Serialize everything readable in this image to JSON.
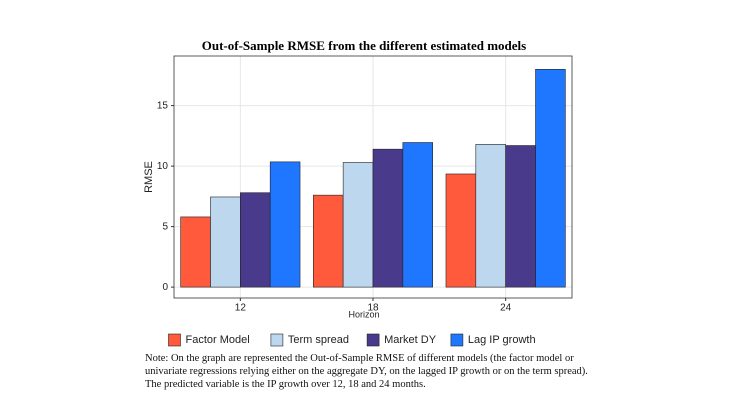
{
  "chart_data": {
    "type": "bar",
    "title": "Out-of-Sample RMSE from the different estimated models",
    "x_label": "Horizon",
    "y_label": "RMSE",
    "categories": [
      "12",
      "18",
      "24"
    ],
    "series": [
      {
        "name": "Factor Model",
        "color": "#ff5a3c",
        "values": [
          5.8,
          7.6,
          9.35
        ]
      },
      {
        "name": "Term spread",
        "color": "#bdd7ee",
        "values": [
          7.45,
          10.3,
          11.8
        ]
      },
      {
        "name": "Market DY",
        "color": "#4a3a8c",
        "values": [
          7.8,
          11.4,
          11.7
        ]
      },
      {
        "name": "Lag IP growth",
        "color": "#1f77ff",
        "values": [
          10.35,
          11.95,
          18.0
        ]
      }
    ],
    "ylim": [
      -0.9,
      19.1
    ],
    "yticks": [
      0,
      5,
      10,
      15
    ],
    "grid": true,
    "legend_position": "bottom",
    "note": "Note: On the graph are represented the Out-of-Sample RMSE of different models (the factor model or univariate regressions relying either on the aggregate DY, on the lagged IP growth or on the term spread). The predicted variable is the IP growth over 12, 18 and 24 months."
  }
}
